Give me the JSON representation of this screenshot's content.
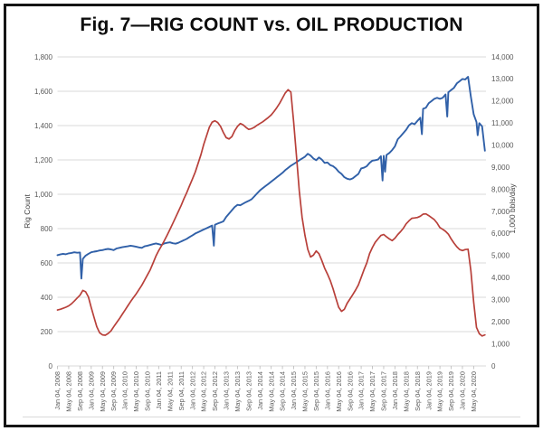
{
  "chart_data": {
    "type": "line",
    "title": "Fig. 7—RIG COUNT vs. OIL PRODUCTION",
    "grid": true,
    "legend": false,
    "x_axis": {
      "start": "Jan 04, 2008",
      "end_of_data": "Sep 2020",
      "tick_interval_months": 4,
      "tick_labels": [
        "Jan 04, 2008",
        "May 04, 2008",
        "Sep 04, 2008",
        "Jan 04, 2009",
        "May 04, 2009",
        "Sep 04, 2009",
        "Jan 04, 2010",
        "May 04, 2010",
        "Sep 04, 2010",
        "Jan 04, 2011",
        "May 04, 2011",
        "Sep 04, 2011",
        "Jan 04, 2012",
        "May 04, 2012",
        "Sep 04, 2012",
        "Jan 04, 2013",
        "May 04, 2013",
        "Sep 04, 2013",
        "Jan 04, 2014",
        "May 04, 2014",
        "Sep 04, 2014",
        "Jan 04, 2015",
        "May 04, 2015",
        "Sep 04, 2015",
        "Jan 04, 2016",
        "May 04, 2016",
        "Sep 04, 2016",
        "Jan 04, 2017",
        "May 04, 2017",
        "Sep 04, 2017",
        "Jan 04, 2018",
        "May 04, 2018",
        "Sep 04, 2018",
        "Jan 04, 2019",
        "May 04, 2019",
        "Sep 04, 2019",
        "Jan 04, 2020",
        "May 04, 2020"
      ]
    },
    "y_axis_left": {
      "label": "Rig Count",
      "min": 0,
      "max": 1800,
      "step": 200,
      "tick_labels": [
        "0",
        "200",
        "400",
        "600",
        "800",
        "1,000",
        "1,200",
        "1,400",
        "1,600",
        "1,800"
      ]
    },
    "y_axis_right": {
      "label": "1,000 bbls/day",
      "min": 0,
      "max": 14000,
      "step": 1000,
      "tick_labels": [
        "0",
        "1,000",
        "2,000",
        "3,000",
        "4,000",
        "5,000",
        "6,000",
        "7,000",
        "8,000",
        "9,000",
        "10,000",
        "11,000",
        "12,000",
        "13,000",
        "14,000"
      ]
    },
    "series": [
      {
        "name": "Oil Production",
        "axis": "right",
        "color": "#3060a8",
        "stroke_width": 1.9,
        "monthly_values": [
          5020,
          5050,
          5080,
          5060,
          5100,
          5120,
          5150,
          5130,
          5140,
          4850,
          5000,
          5080,
          5150,
          5180,
          5200,
          5230,
          5250,
          5280,
          5300,
          5280,
          5250,
          5320,
          5350,
          5380,
          5400,
          5420,
          5450,
          5430,
          5400,
          5370,
          5350,
          5420,
          5450,
          5480,
          5520,
          5550,
          5520,
          5480,
          5550,
          5580,
          5600,
          5560,
          5540,
          5580,
          5640,
          5700,
          5760,
          5840,
          5920,
          6000,
          6060,
          6120,
          6180,
          6240,
          6300,
          6360,
          6400,
          6450,
          6500,
          6550,
          6750,
          6900,
          7050,
          7200,
          7300,
          7280,
          7350,
          7420,
          7480,
          7550,
          7680,
          7820,
          7950,
          8050,
          8150,
          8250,
          8350,
          8450,
          8550,
          8650,
          8750,
          8870,
          8970,
          9070,
          9150,
          9230,
          9320,
          9400,
          9480,
          9610,
          9530,
          9400,
          9320,
          9450,
          9350,
          9200,
          9220,
          9100,
          9050,
          8950,
          8800,
          8700,
          8550,
          8480,
          8450,
          8500,
          8600,
          8700,
          8950,
          8980,
          9050,
          9200,
          9300,
          9320,
          9350,
          9500,
          9520,
          9560,
          9650,
          9780,
          9950,
          10270,
          10400,
          10550,
          10700,
          10900,
          11000,
          10950,
          11100,
          11250,
          11650,
          11700,
          11900,
          12000,
          12100,
          12150,
          12100,
          12150,
          12300,
          12400,
          12500,
          12600,
          12800,
          12900,
          13000,
          12980,
          13100,
          12200,
          11400,
          11050,
          11000,
          10850,
          9750
        ],
        "extra_points": [
          [
            8.5,
            3960
          ],
          [
            55.6,
            5450
          ],
          [
            115.6,
            8400
          ],
          [
            116.5,
            8800
          ],
          [
            129.6,
            10500
          ],
          [
            138.6,
            11300
          ],
          [
            149.4,
            10450
          ]
        ]
      },
      {
        "name": "Rig Count",
        "axis": "left",
        "color": "#b8403a",
        "stroke_width": 1.7,
        "monthly_values": [
          326,
          330,
          336,
          342,
          350,
          362,
          378,
          396,
          412,
          440,
          432,
          402,
          340,
          283,
          228,
          193,
          181,
          179,
          189,
          203,
          228,
          252,
          275,
          300,
          325,
          350,
          375,
          398,
          420,
          445,
          470,
          500,
          530,
          560,
          600,
          640,
          672,
          700,
          730,
          762,
          795,
          830,
          865,
          900,
          935,
          975,
          1010,
          1050,
          1090,
          1130,
          1180,
          1230,
          1290,
          1340,
          1390,
          1420,
          1428,
          1418,
          1395,
          1360,
          1330,
          1322,
          1336,
          1370,
          1395,
          1412,
          1405,
          1390,
          1378,
          1382,
          1390,
          1402,
          1412,
          1422,
          1435,
          1448,
          1462,
          1482,
          1505,
          1530,
          1560,
          1590,
          1609,
          1595,
          1420,
          1223,
          1020,
          866,
          760,
          679,
          635,
          645,
          670,
          653,
          614,
          570,
          536,
          498,
          450,
          395,
          342,
          318,
          330,
          365,
          390,
          415,
          442,
          472,
          515,
          560,
          600,
          655,
          690,
          720,
          740,
          760,
          766,
          752,
          740,
          730,
          744,
          765,
          782,
          802,
          828,
          845,
          860,
          862,
          865,
          872,
          884,
          886,
          876,
          864,
          852,
          832,
          806,
          796,
          784,
          768,
          740,
          716,
          694,
          678,
          672,
          678,
          680,
          555,
          372,
          225,
          188,
          174,
          181
        ],
        "extra_points": []
      }
    ],
    "style": {
      "grid_color": "#d9d9d9",
      "tick_color": "#bfbfbf",
      "tick_text_color": "#595959",
      "axis_title_color": "#404040",
      "frame_color": "#151515",
      "background": "#ffffff"
    }
  }
}
